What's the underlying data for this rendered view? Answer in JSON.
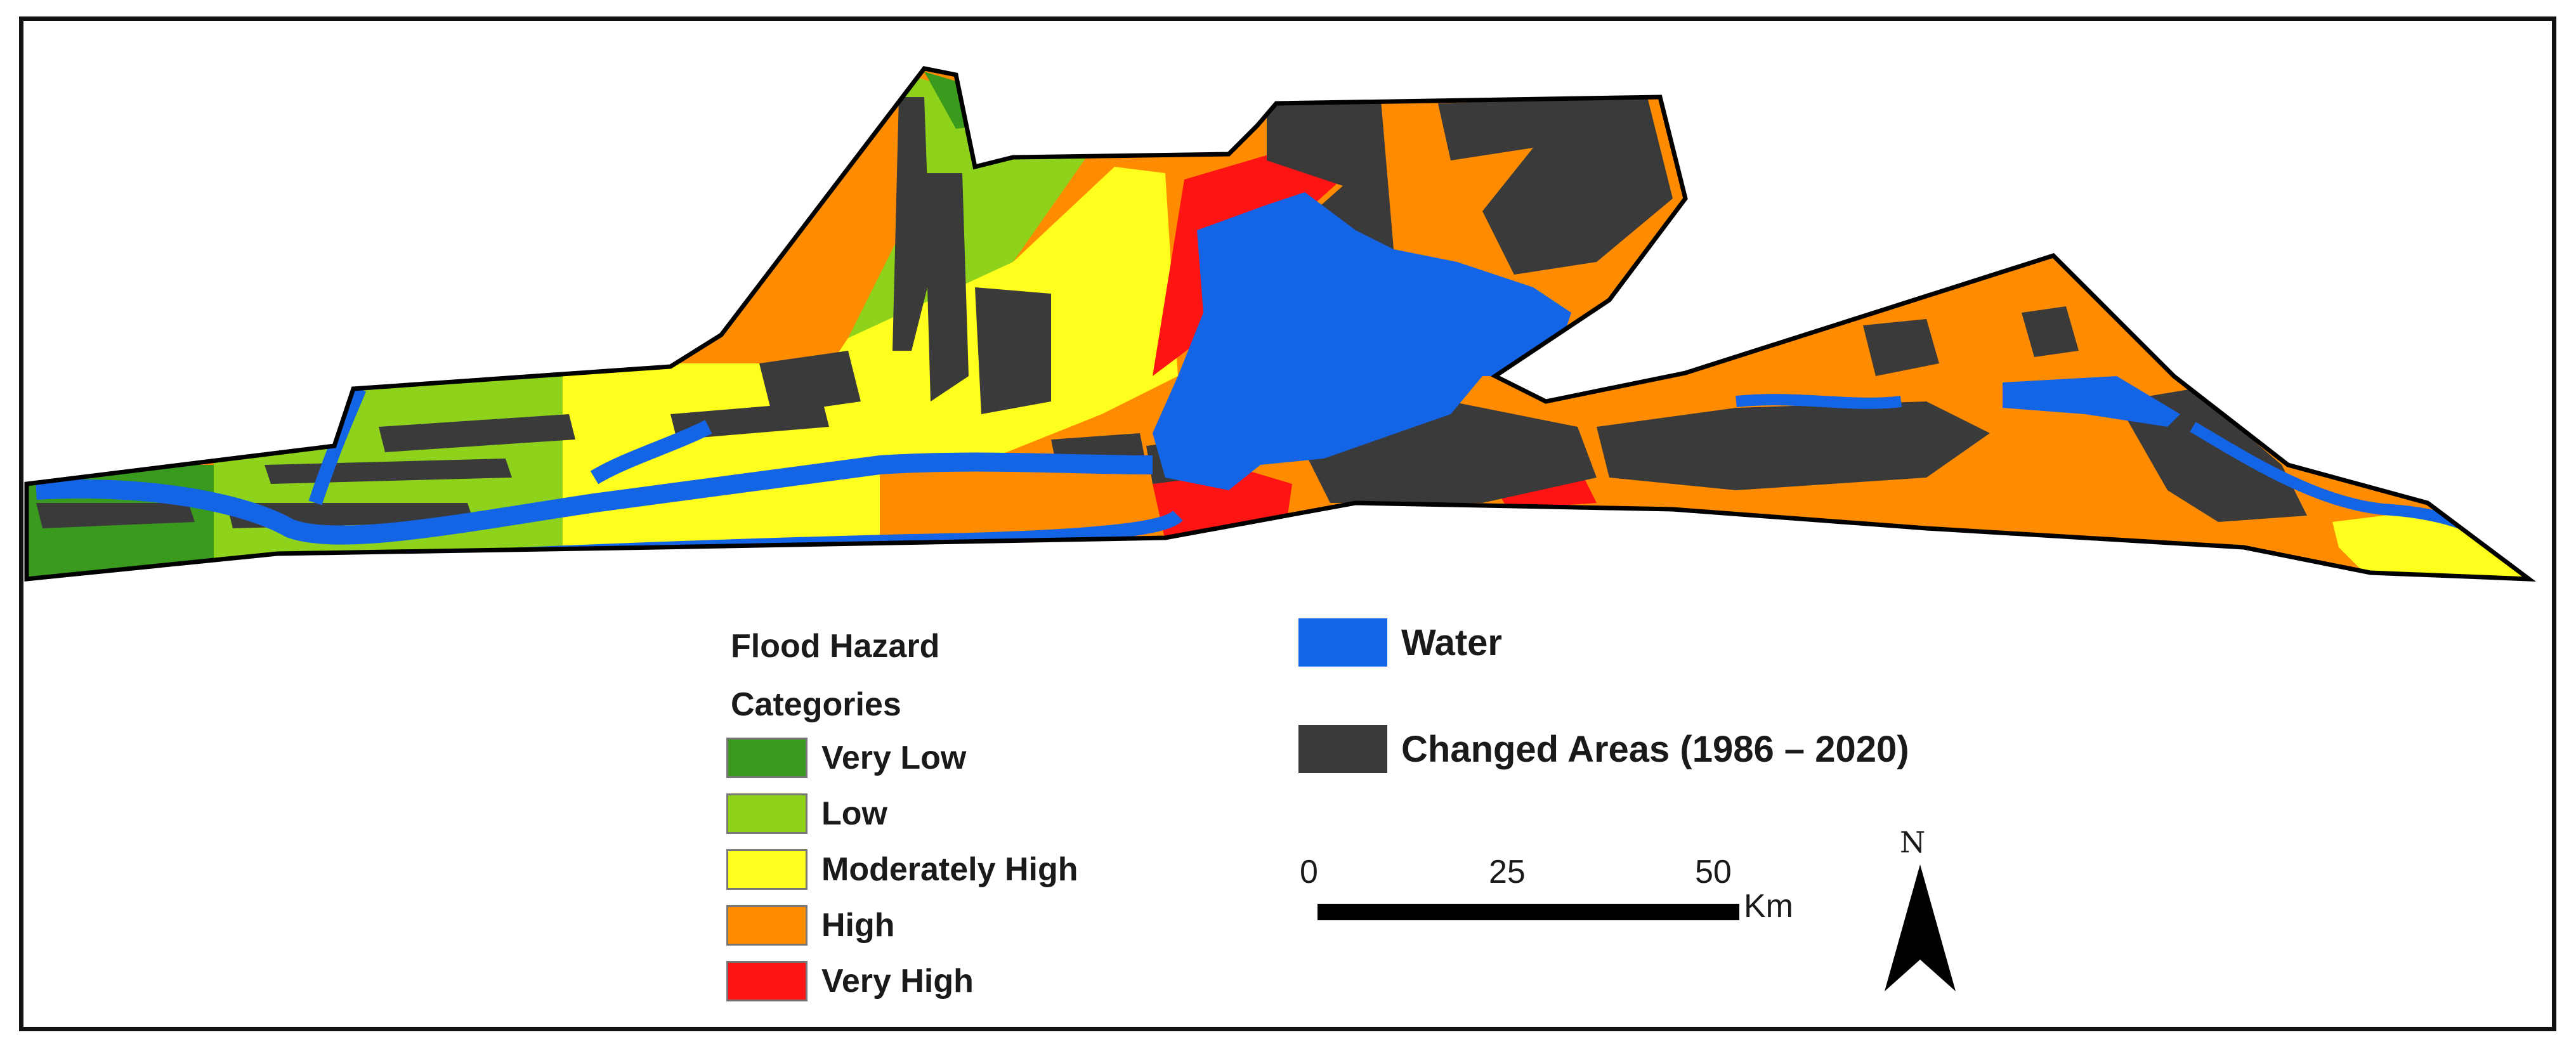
{
  "legend": {
    "title_line1": "Flood Hazard",
    "title_line2": "Categories",
    "categories": [
      {
        "label": "Very Low",
        "color": "#3a9a1e"
      },
      {
        "label": "Low",
        "color": "#8fd21c"
      },
      {
        "label": "Moderately High",
        "color": "#ffff1e"
      },
      {
        "label": "High",
        "color": "#ff8c00"
      },
      {
        "label": "Very High",
        "color": "#ff1414"
      }
    ],
    "water": {
      "label": "Water",
      "color": "#1464e6"
    },
    "changed": {
      "label": "Changed Areas  (1986 – 2020)",
      "color": "#3a3a3a"
    }
  },
  "scale_bar": {
    "ticks": [
      "0",
      "25",
      "50"
    ],
    "unit": "Km"
  },
  "north_arrow": {
    "label": "N"
  }
}
